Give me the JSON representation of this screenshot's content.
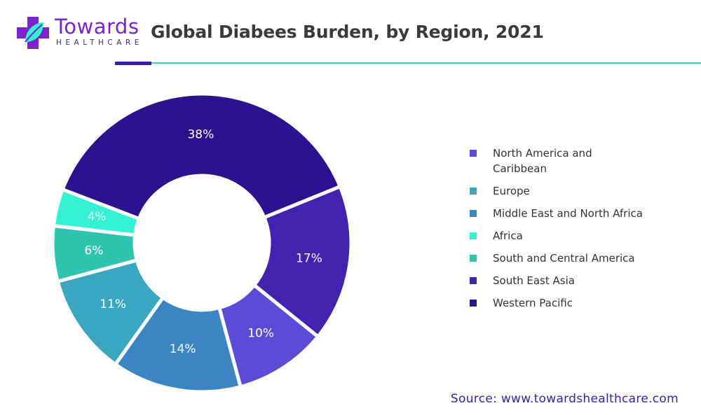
{
  "brand": {
    "name": "Towards",
    "subtitle": "HEALTHCARE"
  },
  "source": "Source: www.towardshealthcare.com",
  "chart_data": {
    "type": "pie",
    "variant": "donut",
    "title": "Global Diabees Burden, by Region, 2021",
    "legend_position": "right",
    "categories": [
      "North America and Caribbean",
      "Europe",
      "Middle East and North Africa",
      "Africa",
      "South and Central America",
      "South East Asia",
      "Western Pacific"
    ],
    "legend_colors": [
      "#5b4bd6",
      "#3aa6c0",
      "#3a85c2",
      "#33f2d3",
      "#2ec4b0",
      "#4123b0",
      "#2d1290"
    ],
    "slices": [
      {
        "label": "38%",
        "value": 38,
        "color": "#2d1290"
      },
      {
        "label": "17%",
        "value": 17,
        "color": "#4123b0"
      },
      {
        "label": "10%",
        "value": 10,
        "color": "#5b4bd6"
      },
      {
        "label": "14%",
        "value": 14,
        "color": "#3a85c2"
      },
      {
        "label": "11%",
        "value": 11,
        "color": "#3aa6c0"
      },
      {
        "label": "6%",
        "value": 6,
        "color": "#2ec4b0"
      },
      {
        "label": "4%",
        "value": 4,
        "color": "#33f2d3",
        "label_color": "#2d1290"
      }
    ]
  }
}
